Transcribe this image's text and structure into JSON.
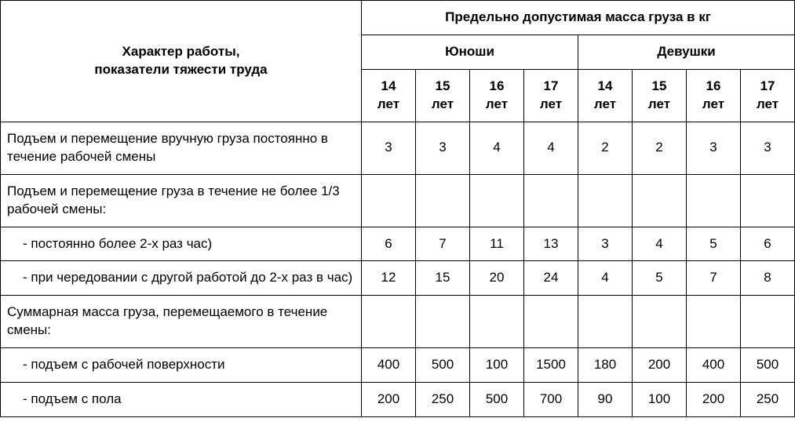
{
  "table": {
    "border_color": "#000000",
    "background_color": "#ffffff",
    "text_color": "#000000",
    "font_size_pt": 13,
    "font_family": "Arial",
    "header": {
      "desc_line1": "Характер работы,",
      "desc_line2": "показатели тяжести труда",
      "top_span": "Предельно допустимая масса груза в кг",
      "group_boys": "Юноши",
      "group_girls": "Девушки",
      "ages": {
        "a14_1": "14",
        "a15_1": "15",
        "a16_1": "16",
        "a17_1": "17",
        "a14_2": "14",
        "a15_2": "15",
        "a16_2": "16",
        "a17_2": "17",
        "unit": "лет"
      }
    },
    "rows": [
      {
        "desc": "Подъем и перемещение вручную груза посто­янно в течение рабочей смены",
        "indent": false,
        "values": [
          "3",
          "3",
          "4",
          "4",
          "2",
          "2",
          "3",
          "3"
        ]
      },
      {
        "desc": "Подъем и перемещение груза в течение не бо­лее 1/3 рабочей смены:",
        "indent": false,
        "values": [
          "",
          "",
          "",
          "",
          "",
          "",
          "",
          ""
        ]
      },
      {
        "desc": "- постоянно более 2-х раз час)",
        "indent": true,
        "values": [
          "6",
          "7",
          "11",
          "13",
          "3",
          "4",
          "5",
          "6"
        ]
      },
      {
        "desc": "- при чередовании с другой работой до 2-х раз в час)",
        "indent": true,
        "values": [
          "12",
          "15",
          "20",
          "24",
          "4",
          "5",
          "7",
          "8"
        ]
      },
      {
        "desc": "Суммарная масса груза, перемещаемого в те­чение смены:",
        "indent": false,
        "values": [
          "",
          "",
          "",
          "",
          "",
          "",
          "",
          ""
        ]
      },
      {
        "desc": "- подъем с рабочей поверхности",
        "indent": true,
        "values": [
          "400",
          "500",
          "100",
          "1500",
          "180",
          "200",
          "400",
          "500"
        ]
      },
      {
        "desc": "- подъем с пола",
        "indent": true,
        "values": [
          "200",
          "250",
          "500",
          "700",
          "90",
          "100",
          "200",
          "250"
        ]
      }
    ]
  }
}
